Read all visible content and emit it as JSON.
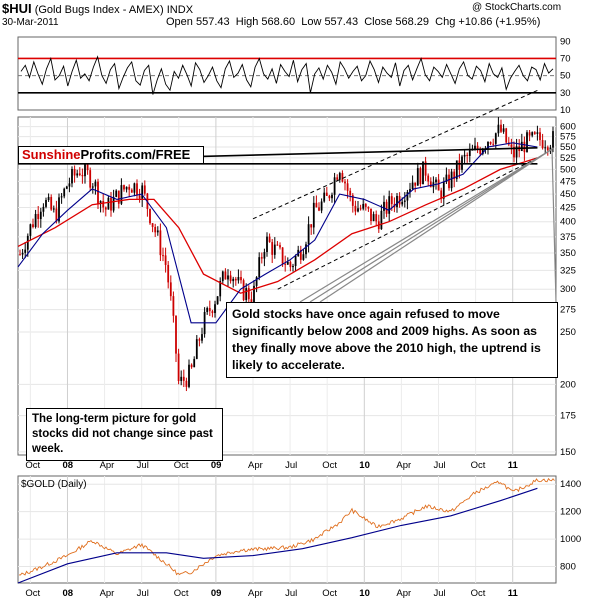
{
  "header": {
    "symbol": "$HUI",
    "name": "(Gold Bugs Index - AMEX)",
    "type_label": "INDX",
    "date": "30-Mar-2011",
    "open": "Open 557.43",
    "high": "High 568.60",
    "low": "Low 557.43",
    "close": "Close 568.29",
    "chg": "Chg +10.86 (+1.95%)",
    "source": "@ StockCharts.com"
  },
  "logo": {
    "red_part": "Sunshine",
    "black_part": "Profits.com/FREE"
  },
  "annotations": {
    "main": "Gold stocks have once again refused to move significantly below 2008 and 2009 highs. As soon as they finally move above the 2010 high, the uptrend is likely to accelerate.",
    "small": "The long-term picture for gold stocks did not change since past week."
  },
  "colors": {
    "price_up": "#000000",
    "price_down": "#cc0000",
    "ma_short": "#00008b",
    "ma_long": "#dd0000",
    "gold_line": "#e07020",
    "rsi_band": "#dd0000",
    "background": "#ffffff",
    "frame": "#666666"
  },
  "chart_data": [
    {
      "id": "rsi",
      "type": "line",
      "description_label": "",
      "y_ticks": [
        10,
        30,
        50,
        70,
        90
      ],
      "ylim": [
        10,
        95
      ],
      "reference_lines": [
        70,
        30
      ],
      "series_name": "",
      "values": [
        55,
        62,
        48,
        66,
        52,
        40,
        58,
        70,
        45,
        50,
        61,
        38,
        55,
        68,
        47,
        52,
        44,
        60,
        72,
        50,
        41,
        57,
        64,
        35,
        48,
        59,
        66,
        44,
        39,
        56,
        62,
        28,
        45,
        58,
        40,
        33,
        55,
        47,
        62,
        51,
        38,
        65,
        57,
        42,
        50,
        60,
        44,
        36,
        58,
        67,
        48,
        53,
        63,
        45,
        37,
        60,
        70,
        52,
        46,
        58,
        41,
        63,
        55,
        49,
        68,
        43,
        57,
        64,
        30,
        52,
        59,
        46,
        62,
        54,
        40,
        66,
        58,
        47,
        55,
        61,
        44,
        50,
        67,
        57,
        42,
        60,
        53,
        48,
        65,
        38,
        56,
        62,
        45,
        58,
        70,
        51,
        44,
        60,
        55,
        48,
        63,
        52,
        41,
        58,
        66,
        50,
        46,
        61,
        56,
        43,
        64,
        52,
        48,
        59,
        34,
        47,
        55,
        62,
        50,
        44,
        60,
        57,
        45,
        64,
        53,
        58
      ]
    },
    {
      "id": "hui",
      "type": "candlestick",
      "title": "$HUI (Gold Bugs Index - AMEX)",
      "x_ticks": [
        "Oct",
        "08",
        "Apr",
        "Jul",
        "Oct",
        "09",
        "Apr",
        "Jul",
        "Oct",
        "10",
        "Apr",
        "Jul",
        "Oct",
        "11"
      ],
      "x_range": [
        "2007-09",
        "2011-03"
      ],
      "y_ticks": [
        150,
        175,
        200,
        250,
        275,
        300,
        325,
        350,
        375,
        400,
        425,
        450,
        475,
        500,
        525,
        550,
        575,
        600
      ],
      "y_scale": "log",
      "ylim": [
        148,
        625
      ],
      "trend_points": [
        [
          "2007-09",
          340
        ],
        [
          "2007-10",
          390
        ],
        [
          "2007-11",
          440
        ],
        [
          "2007-12",
          410
        ],
        [
          "2008-01",
          470
        ],
        [
          "2008-02",
          500
        ],
        [
          "2008-03",
          480
        ],
        [
          "2008-04",
          420
        ],
        [
          "2008-05",
          445
        ],
        [
          "2008-06",
          470
        ],
        [
          "2008-07",
          460
        ],
        [
          "2008-08",
          390
        ],
        [
          "2008-09",
          330
        ],
        [
          "2008-10",
          200
        ],
        [
          "2008-11",
          210
        ],
        [
          "2008-12",
          260
        ],
        [
          "2009-01",
          290
        ],
        [
          "2009-02",
          330
        ],
        [
          "2009-03",
          300
        ],
        [
          "2009-04",
          290
        ],
        [
          "2009-05",
          370
        ],
        [
          "2009-06",
          350
        ],
        [
          "2009-07",
          330
        ],
        [
          "2009-08",
          360
        ],
        [
          "2009-09",
          420
        ],
        [
          "2009-10",
          440
        ],
        [
          "2009-11",
          510
        ],
        [
          "2009-12",
          430
        ],
        [
          "2010-01",
          420
        ],
        [
          "2010-02",
          400
        ],
        [
          "2010-03",
          430
        ],
        [
          "2010-04",
          450
        ],
        [
          "2010-05",
          480
        ],
        [
          "2010-06",
          500
        ],
        [
          "2010-07",
          450
        ],
        [
          "2010-08",
          480
        ],
        [
          "2010-09",
          520
        ],
        [
          "2010-10",
          540
        ],
        [
          "2010-11",
          570
        ],
        [
          "2010-12",
          590
        ],
        [
          "2011-01",
          530
        ],
        [
          "2011-02",
          560
        ],
        [
          "2011-03",
          568
        ]
      ],
      "ma_short_points": [
        [
          "2007-09",
          330
        ],
        [
          "2007-11",
          380
        ],
        [
          "2008-01",
          420
        ],
        [
          "2008-03",
          460
        ],
        [
          "2008-05",
          440
        ],
        [
          "2008-07",
          450
        ],
        [
          "2008-09",
          390
        ],
        [
          "2008-11",
          260
        ],
        [
          "2009-01",
          260
        ],
        [
          "2009-03",
          300
        ],
        [
          "2009-05",
          320
        ],
        [
          "2009-07",
          340
        ],
        [
          "2009-09",
          370
        ],
        [
          "2009-11",
          450
        ],
        [
          "2010-01",
          440
        ],
        [
          "2010-03",
          420
        ],
        [
          "2010-05",
          460
        ],
        [
          "2010-07",
          470
        ],
        [
          "2010-09",
          490
        ],
        [
          "2010-11",
          550
        ],
        [
          "2011-01",
          560
        ],
        [
          "2011-03",
          550
        ]
      ],
      "ma_long_points": [
        [
          "2007-09",
          360
        ],
        [
          "2007-12",
          390
        ],
        [
          "2008-03",
          430
        ],
        [
          "2008-06",
          440
        ],
        [
          "2008-08",
          440
        ],
        [
          "2008-10",
          390
        ],
        [
          "2008-12",
          320
        ],
        [
          "2009-03",
          295
        ],
        [
          "2009-06",
          310
        ],
        [
          "2009-09",
          340
        ],
        [
          "2009-12",
          380
        ],
        [
          "2010-03",
          400
        ],
        [
          "2010-06",
          430
        ],
        [
          "2010-09",
          460
        ],
        [
          "2010-12",
          500
        ],
        [
          "2011-03",
          525
        ]
      ],
      "trend_lines": [
        {
          "from": [
            "2007-09",
            512
          ],
          "to": [
            "2011-03",
            512
          ]
        },
        {
          "from": [
            "2007-09",
            518
          ],
          "to": [
            "2011-03",
            548
          ]
        },
        {
          "from": [
            "2009-06",
            300
          ],
          "to": [
            "2011-03",
            525
          ]
        },
        {
          "from": [
            "2009-04",
            405
          ],
          "to": [
            "2011-03",
            700
          ]
        }
      ]
    },
    {
      "id": "gold",
      "type": "line",
      "label": "$GOLD (Daily)",
      "y_ticks": [
        800,
        1000,
        1200,
        1400
      ],
      "ylim": [
        680,
        1460
      ],
      "x_ticks": [
        "Oct",
        "08",
        "Apr",
        "Jul",
        "Oct",
        "09",
        "Apr",
        "Jul",
        "Oct",
        "10",
        "Apr",
        "Jul",
        "Oct",
        "11"
      ],
      "price_points": [
        [
          "2007-09",
          730
        ],
        [
          "2007-11",
          800
        ],
        [
          "2008-01",
          880
        ],
        [
          "2008-03",
          990
        ],
        [
          "2008-05",
          890
        ],
        [
          "2008-07",
          960
        ],
        [
          "2008-09",
          820
        ],
        [
          "2008-10",
          740
        ],
        [
          "2008-11",
          760
        ],
        [
          "2009-01",
          880
        ],
        [
          "2009-03",
          920
        ],
        [
          "2009-05",
          930
        ],
        [
          "2009-07",
          940
        ],
        [
          "2009-09",
          1000
        ],
        [
          "2009-11",
          1120
        ],
        [
          "2009-12",
          1210
        ],
        [
          "2010-02",
          1090
        ],
        [
          "2010-04",
          1150
        ],
        [
          "2010-06",
          1240
        ],
        [
          "2010-08",
          1200
        ],
        [
          "2010-10",
          1340
        ],
        [
          "2010-12",
          1420
        ],
        [
          "2011-01",
          1340
        ],
        [
          "2011-03",
          1430
        ]
      ],
      "ma_points": [
        [
          "2007-09",
          680
        ],
        [
          "2008-01",
          820
        ],
        [
          "2008-05",
          900
        ],
        [
          "2008-09",
          900
        ],
        [
          "2008-12",
          860
        ],
        [
          "2009-04",
          880
        ],
        [
          "2009-08",
          930
        ],
        [
          "2009-12",
          1010
        ],
        [
          "2010-04",
          1100
        ],
        [
          "2010-08",
          1170
        ],
        [
          "2010-12",
          1280
        ],
        [
          "2011-03",
          1370
        ]
      ]
    }
  ]
}
